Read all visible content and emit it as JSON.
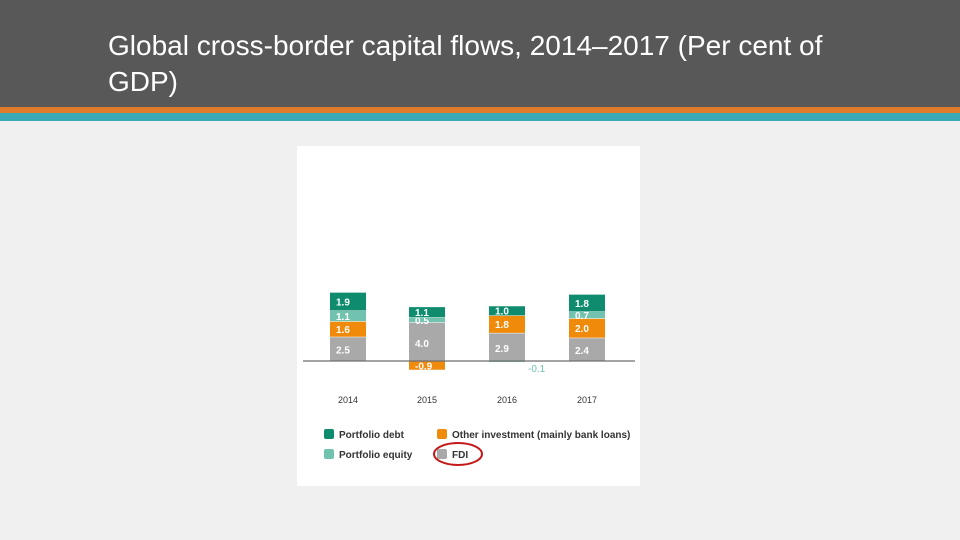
{
  "slide": {
    "title": "Global cross-border capital flows, 2014–2017 (Per cent of GDP)"
  },
  "colors": {
    "portfolio_debt": "#0f8c6e",
    "portfolio_equity": "#72c2b0",
    "other_investment": "#ef8a0b",
    "fdi": "#a9a9a9",
    "highlight_circle": "#c41a1a"
  },
  "chart_data": {
    "type": "bar",
    "stacked": true,
    "categories": [
      "2014",
      "2015",
      "2016",
      "2017"
    ],
    "series": [
      {
        "name": "FDI",
        "key": "fdi",
        "values": [
          2.5,
          4.0,
          2.9,
          2.4
        ],
        "value_labels": [
          "2.5",
          "4.0",
          "2.9",
          "2.4"
        ]
      },
      {
        "name": "Other investment (mainly bank loans)",
        "key": "other_investment",
        "values": [
          1.6,
          -0.9,
          1.8,
          2.0
        ],
        "value_labels": [
          "1.6",
          "-0.9",
          "1.8",
          "2.0"
        ]
      },
      {
        "name": "Portfolio equity",
        "key": "portfolio_equity",
        "values": [
          1.1,
          0.5,
          -0.1,
          0.7
        ],
        "value_labels": [
          "1.1",
          "0.5",
          "-0.1",
          "0.7"
        ]
      },
      {
        "name": "Portfolio debt",
        "key": "portfolio_debt",
        "values": [
          1.9,
          1.1,
          1.0,
          1.8
        ],
        "value_labels": [
          "1.9",
          "1.1",
          "1.0",
          "1.8"
        ]
      }
    ],
    "legend_order": [
      "portfolio_debt",
      "other_investment",
      "portfolio_equity",
      "fdi"
    ],
    "legend_placement": "bottom",
    "highlighted_legend_item": "fdi",
    "ylim": [
      -1.1,
      7.3
    ],
    "grid": false,
    "title": "",
    "xlabel": "",
    "ylabel": ""
  }
}
